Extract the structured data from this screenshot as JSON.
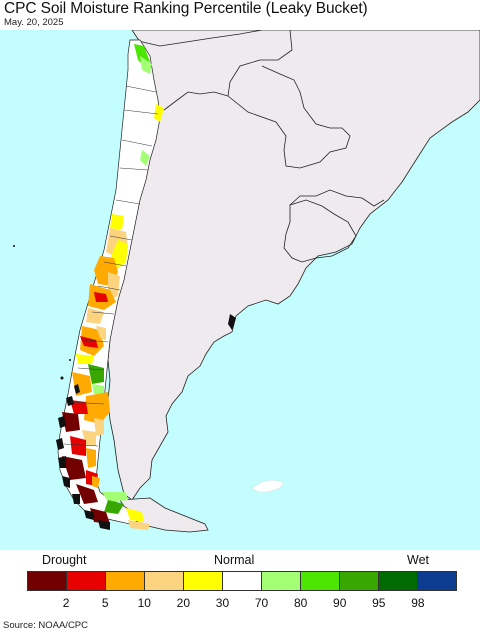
{
  "header": {
    "title": "CPC Soil Moisture Ranking Percentile (Leaky Bucket)",
    "date": "May. 20, 2025"
  },
  "legend": {
    "left_label": "Drought",
    "center_label": "Normal",
    "right_label": "Wet",
    "colors": [
      "#730000",
      "#e60000",
      "#ffaa00",
      "#fcd37f",
      "#ffff00",
      "#ffffff",
      "#a3ff73",
      "#4ce600",
      "#38a800",
      "#006b00",
      "#0c3d91"
    ],
    "ticks": [
      "2",
      "5",
      "10",
      "20",
      "30",
      "70",
      "80",
      "90",
      "95",
      "98"
    ]
  },
  "source": "Source: NOAA/CPC",
  "map_colors": {
    "ocean": "#c3fdfd",
    "land": "#eeeaee",
    "border": "#222222"
  }
}
